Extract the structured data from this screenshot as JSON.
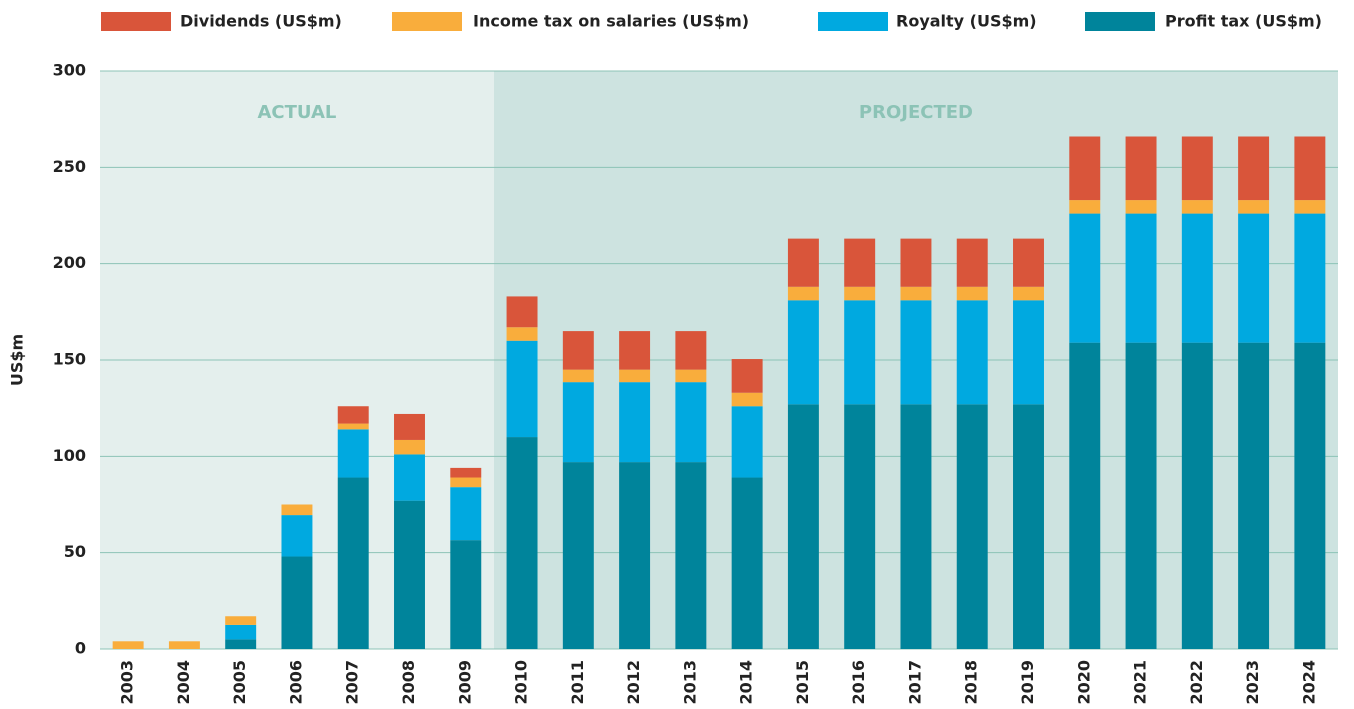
{
  "chart_data": {
    "type": "bar",
    "stacked": true,
    "ylabel": "US$m",
    "annotations": [
      "ACTUAL",
      "PROJECTED"
    ],
    "categories": [
      "2003",
      "2004",
      "2005",
      "2006",
      "2007",
      "2008",
      "2009",
      "2010",
      "2011",
      "2012",
      "2013",
      "2014",
      "2015",
      "2016",
      "2017",
      "2018",
      "2019",
      "2020",
      "2021",
      "2022",
      "2023",
      "2024"
    ],
    "series": [
      {
        "name": "Profit tax (US$m)",
        "color": "#00849b",
        "values": [
          0,
          0,
          5,
          48,
          89,
          77,
          56.5,
          110,
          97,
          97,
          97,
          89,
          127,
          127,
          127,
          127,
          127,
          159,
          159,
          159,
          159,
          159
        ]
      },
      {
        "name": "Royalty (US$m)",
        "color": "#00a9e0",
        "values": [
          0,
          0,
          7.5,
          21.5,
          25,
          24,
          27.5,
          50,
          41.5,
          41.5,
          41.5,
          37,
          54,
          54,
          54,
          54,
          54,
          67,
          67,
          67,
          67,
          67
        ]
      },
      {
        "name": "Income tax on salaries (US$m)",
        "color": "#f9ad3c",
        "values": [
          4,
          4,
          4.5,
          5.5,
          3,
          7.5,
          5,
          7,
          6.5,
          6.5,
          6.5,
          7,
          7,
          7,
          7,
          7,
          7,
          7,
          7,
          7,
          7,
          7
        ]
      },
      {
        "name": "Dividends (US$m)",
        "color": "#d9553a",
        "values": [
          0,
          0,
          0,
          0,
          9,
          13.5,
          5,
          16,
          20,
          20,
          20,
          17.5,
          25,
          25,
          25,
          25,
          25,
          33,
          33,
          33,
          33,
          33
        ]
      }
    ],
    "ylim": [
      0,
      300
    ],
    "yticks": [
      0,
      50,
      100,
      150,
      200,
      250,
      300
    ],
    "grid": true
  }
}
